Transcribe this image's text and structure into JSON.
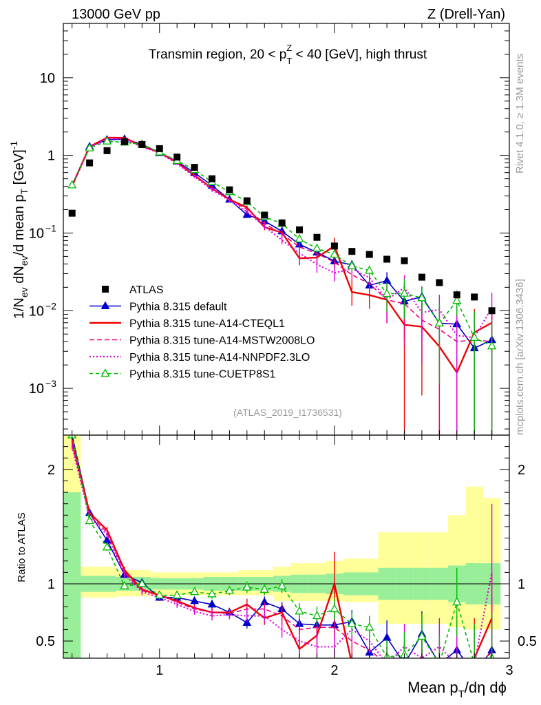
{
  "header": {
    "left": "13000 GeV pp",
    "right": "Z (Drell-Yan)"
  },
  "side_labels": {
    "rivet": "Rivet 4.1.0, ≥ 1.3M events",
    "mcplots": "mcplots.cern.ch [arXiv:1306.3436]"
  },
  "chart_data": {
    "type": "scatter",
    "title": "Transmin region, 20 < p_T^Z < 40 [GeV], high thrust",
    "title_parts": {
      "prefix": "Transmin region, 20 < p",
      "sub": "T",
      "sup": "Z",
      "suffix": " < 40 [GeV], high thrust"
    },
    "analysis_id": "(ATLAS_2019_I1736531)",
    "xlabel": "Mean p_T/dη dϕ",
    "xlabel_parts": {
      "main": "Mean p",
      "sub": "T",
      "rest": "/dη dϕ"
    },
    "ylabel": "1/N_ev dN_ev/d mean p_T [GeV]^-1",
    "ylabel_parts": [
      {
        "t": "1/N",
        "s": "n"
      },
      {
        "t": "ev",
        "s": "sub"
      },
      {
        "t": " dN",
        "s": "n"
      },
      {
        "t": "ev",
        "s": "sub"
      },
      {
        "t": "/d mean p",
        "s": "n"
      },
      {
        "t": "T",
        "s": "sub"
      },
      {
        "t": " [GeV]",
        "s": "n"
      },
      {
        "t": "-1",
        "s": "sup"
      }
    ],
    "ratio_ylabel": "Ratio to ATLAS",
    "xlim": [
      0.45,
      3.0
    ],
    "ylim": [
      0.00025,
      50
    ],
    "ratio_ylim": [
      0.35,
      2.3
    ],
    "x_ticks": [
      "1",
      "2",
      "3"
    ],
    "y_ticks": [
      {
        "value": 10,
        "label": "10"
      },
      {
        "value": 1,
        "label": "1"
      },
      {
        "value": 0.1,
        "label": "10",
        "exp": "−1"
      },
      {
        "value": 0.01,
        "label": "10",
        "exp": "−2"
      },
      {
        "value": 0.001,
        "label": "10",
        "exp": "−3"
      }
    ],
    "ratio_ticks": [
      "2",
      "1",
      "0.5"
    ],
    "x": [
      0.5,
      0.6,
      0.7,
      0.8,
      0.9,
      1.0,
      1.1,
      1.2,
      1.3,
      1.4,
      1.5,
      1.6,
      1.7,
      1.8,
      1.9,
      2.0,
      2.1,
      2.2,
      2.3,
      2.4,
      2.5,
      2.6,
      2.7,
      2.8,
      2.9
    ],
    "bin_edges": [
      0.45,
      0.55,
      0.65,
      0.75,
      0.85,
      0.95,
      1.05,
      1.15,
      1.25,
      1.35,
      1.45,
      1.55,
      1.65,
      1.75,
      1.85,
      1.95,
      2.05,
      2.15,
      2.25,
      2.35,
      2.45,
      2.55,
      2.65,
      2.75,
      2.85,
      2.95
    ],
    "data": {
      "name": "ATLAS",
      "values": [
        0.18,
        0.8,
        1.15,
        1.5,
        1.38,
        1.22,
        0.95,
        0.7,
        0.5,
        0.36,
        0.26,
        0.17,
        0.135,
        0.11,
        0.088,
        0.068,
        0.058,
        0.053,
        0.046,
        0.044,
        0.027,
        0.023,
        0.016,
        0.015,
        0.01
      ],
      "band_inner": [
        [
          0.2,
          1.8
        ],
        [
          0.93,
          1.07
        ],
        [
          0.93,
          1.07
        ],
        [
          0.94,
          1.06
        ],
        [
          0.94,
          1.06
        ],
        [
          0.95,
          1.05
        ],
        [
          0.95,
          1.05
        ],
        [
          0.95,
          1.05
        ],
        [
          0.94,
          1.06
        ],
        [
          0.94,
          1.06
        ],
        [
          0.94,
          1.06
        ],
        [
          0.94,
          1.06
        ],
        [
          0.93,
          1.07
        ],
        [
          0.92,
          1.08
        ],
        [
          0.92,
          1.08
        ],
        [
          0.91,
          1.09
        ],
        [
          0.9,
          1.1
        ],
        [
          0.9,
          1.1
        ],
        [
          0.86,
          1.14
        ],
        [
          0.86,
          1.14
        ],
        [
          0.86,
          1.14
        ],
        [
          0.86,
          1.14
        ],
        [
          0.84,
          1.16
        ],
        [
          0.82,
          1.18
        ],
        [
          0.82,
          1.18
        ]
      ],
      "band_outer": [
        [
          0.1,
          2.3
        ],
        [
          0.88,
          1.15
        ],
        [
          0.88,
          1.15
        ],
        [
          0.89,
          1.12
        ],
        [
          0.89,
          1.12
        ],
        [
          0.9,
          1.1
        ],
        [
          0.9,
          1.1
        ],
        [
          0.9,
          1.1
        ],
        [
          0.9,
          1.1
        ],
        [
          0.9,
          1.1
        ],
        [
          0.9,
          1.12
        ],
        [
          0.9,
          1.12
        ],
        [
          0.85,
          1.15
        ],
        [
          0.85,
          1.18
        ],
        [
          0.85,
          1.18
        ],
        [
          0.85,
          1.2
        ],
        [
          0.84,
          1.22
        ],
        [
          0.84,
          1.22
        ],
        [
          0.65,
          1.45
        ],
        [
          0.65,
          1.45
        ],
        [
          0.65,
          1.45
        ],
        [
          0.65,
          1.45
        ],
        [
          0.62,
          1.6
        ],
        [
          0.6,
          1.85
        ],
        [
          0.6,
          1.75
        ]
      ]
    },
    "series": [
      {
        "name": "Pythia 8.315 default",
        "color": "#0000cc",
        "dash": "",
        "marker": "triangle-filled",
        "ratio": [
          2.3,
          1.62,
          1.38,
          1.08,
          1.01,
          0.88,
          0.88,
          0.85,
          0.82,
          0.75,
          0.66,
          0.84,
          0.78,
          0.65,
          0.64,
          0.64,
          0.67,
          0.4,
          0.53,
          0.3,
          0.56,
          0.3,
          0.42,
          0.22,
          0.42
        ],
        "err": [
          0.03,
          0.03,
          0.03,
          0.03,
          0.03,
          0.03,
          0.03,
          0.03,
          0.04,
          0.04,
          0.05,
          0.05,
          0.06,
          0.07,
          0.08,
          0.09,
          0.1,
          0.1,
          0.15,
          0.2,
          0.2,
          0.25,
          0.3,
          0.35,
          0.4
        ]
      },
      {
        "name": "Pythia 8.315 tune-A14-CTEQL1",
        "color": "#ee0000",
        "dash": "",
        "marker": "none",
        "ratio": [
          2.25,
          1.62,
          1.47,
          1.12,
          0.95,
          0.9,
          0.85,
          0.79,
          0.75,
          0.75,
          0.82,
          0.7,
          0.75,
          0.43,
          0.55,
          1.0,
          0.3,
          0.3,
          0.3,
          0.15,
          0.23,
          0.15,
          0.1,
          0.35,
          0.7
        ],
        "err": [
          0.03,
          0.03,
          0.03,
          0.03,
          0.03,
          0.03,
          0.03,
          0.03,
          0.04,
          0.04,
          0.05,
          0.06,
          0.07,
          0.08,
          0.1,
          0.28,
          0.1,
          0.1,
          0.15,
          0.2,
          0.2,
          0.25,
          0.3,
          0.35,
          0.4
        ]
      },
      {
        "name": "Pythia 8.315 tune-A14-MSTW2008LO",
        "color": "#ee0077",
        "dash": "7,4",
        "marker": "none",
        "ratio": [
          2.22,
          1.6,
          1.45,
          1.1,
          0.94,
          0.9,
          0.84,
          0.78,
          0.75,
          0.74,
          0.78,
          0.78,
          0.72,
          0.6,
          0.62,
          0.62,
          0.5,
          0.42,
          0.3,
          0.28,
          0.28,
          0.25,
          0.25,
          0.28,
          0.4
        ],
        "err": [
          0.03,
          0.03,
          0.03,
          0.03,
          0.03,
          0.03,
          0.03,
          0.03,
          0.04,
          0.04,
          0.05,
          0.06,
          0.07,
          0.08,
          0.1,
          0.1,
          0.1,
          0.12,
          0.15,
          0.2,
          0.2,
          0.25,
          0.3,
          0.35,
          0.5
        ]
      },
      {
        "name": "Pythia 8.315 tune-A14-NNPDF2.3LO",
        "color": "#dd00dd",
        "dash": "2,3",
        "marker": "none",
        "ratio": [
          2.2,
          1.58,
          1.43,
          1.08,
          0.93,
          0.88,
          0.82,
          0.76,
          0.72,
          0.73,
          0.72,
          0.72,
          0.6,
          0.5,
          0.45,
          0.45,
          0.6,
          0.5,
          0.3,
          0.45,
          0.35,
          0.45,
          0.3,
          0.3,
          1.1
        ],
        "err": [
          0.03,
          0.03,
          0.03,
          0.03,
          0.03,
          0.03,
          0.03,
          0.03,
          0.04,
          0.04,
          0.05,
          0.06,
          0.07,
          0.08,
          0.1,
          0.1,
          0.1,
          0.12,
          0.15,
          0.2,
          0.2,
          0.25,
          0.3,
          0.35,
          0.6
        ]
      },
      {
        "name": "Pythia 8.315 tune-CUETP8S1",
        "color": "#00bb00",
        "dash": "5,4",
        "marker": "triangle-open",
        "ratio": [
          2.3,
          1.55,
          1.32,
          0.98,
          1.0,
          0.9,
          0.9,
          0.93,
          0.91,
          0.94,
          0.97,
          0.95,
          0.98,
          0.76,
          0.72,
          0.78,
          0.65,
          0.62,
          0.36,
          0.38,
          0.54,
          0.3,
          0.84,
          0.3,
          0.35
        ],
        "err": [
          0.03,
          0.03,
          0.03,
          0.03,
          0.03,
          0.03,
          0.03,
          0.03,
          0.04,
          0.04,
          0.05,
          0.05,
          0.06,
          0.07,
          0.08,
          0.09,
          0.1,
          0.1,
          0.15,
          0.2,
          0.2,
          0.25,
          0.3,
          0.35,
          0.4
        ]
      }
    ]
  }
}
